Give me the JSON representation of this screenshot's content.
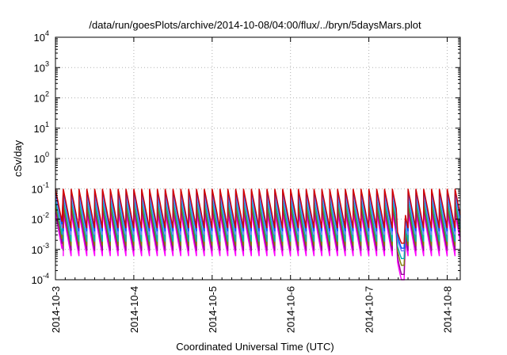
{
  "chart_data": {
    "type": "line",
    "title": "/data/run/goesPlots/archive/2014-10-08/04:00/flux/../bryn/5daysMars.plot",
    "xlabel": "Coordinated Universal Time (UTC)",
    "ylabel": "cSv/day",
    "y_scale": "log",
    "ylim": [
      0.0001,
      10000
    ],
    "y_ticks": [
      {
        "base": "10",
        "exp": "-4",
        "value": 0.0001
      },
      {
        "base": "10",
        "exp": "-3",
        "value": 0.001
      },
      {
        "base": "10",
        "exp": "-2",
        "value": 0.01
      },
      {
        "base": "10",
        "exp": "-1",
        "value": 0.1
      },
      {
        "base": "10",
        "exp": "0",
        "value": 1
      },
      {
        "base": "10",
        "exp": "1",
        "value": 10
      },
      {
        "base": "10",
        "exp": "2",
        "value": 100
      },
      {
        "base": "10",
        "exp": "3",
        "value": 1000
      },
      {
        "base": "10",
        "exp": "4",
        "value": 10000
      }
    ],
    "x_range": [
      "2014-10-03",
      "2014-10-08 04:00"
    ],
    "x_ticks": [
      "2014-10-3",
      "2014-10-4",
      "2014-10-5",
      "2014-10-6",
      "2014-10-7",
      "2014-10-8"
    ],
    "grid": true,
    "legend": "none",
    "pattern": {
      "description": "sawtooth, ~10 cycles per day, drop near 2014-10-7 09:00–11:00",
      "cycles_per_day": 10,
      "dip_start_day": 4.35,
      "dip_end_day": 4.45
    },
    "series": [
      {
        "color": "#d40000",
        "peak": 0.1,
        "trough": 0.005,
        "dip_min": 0.0016
      },
      {
        "color": "#0055ff",
        "peak": 0.09,
        "trough": 0.004,
        "dip_min": 0.0011
      },
      {
        "color": "#7777ff",
        "peak": 0.07,
        "trough": 0.003,
        "dip_min": 0.0009
      },
      {
        "color": "#00b3b3",
        "peak": 0.045,
        "trough": 0.0018,
        "dip_min": 0.0005
      },
      {
        "color": "#7f7f00",
        "peak": 0.03,
        "trough": 0.0013,
        "dip_min": 0.0003
      },
      {
        "color": "#990099",
        "peak": 0.022,
        "trough": 0.0009,
        "dip_min": 0.00015
      },
      {
        "color": "#ff00ff",
        "peak": 0.016,
        "trough": 0.0006,
        "dip_min": 0.0001
      }
    ]
  }
}
